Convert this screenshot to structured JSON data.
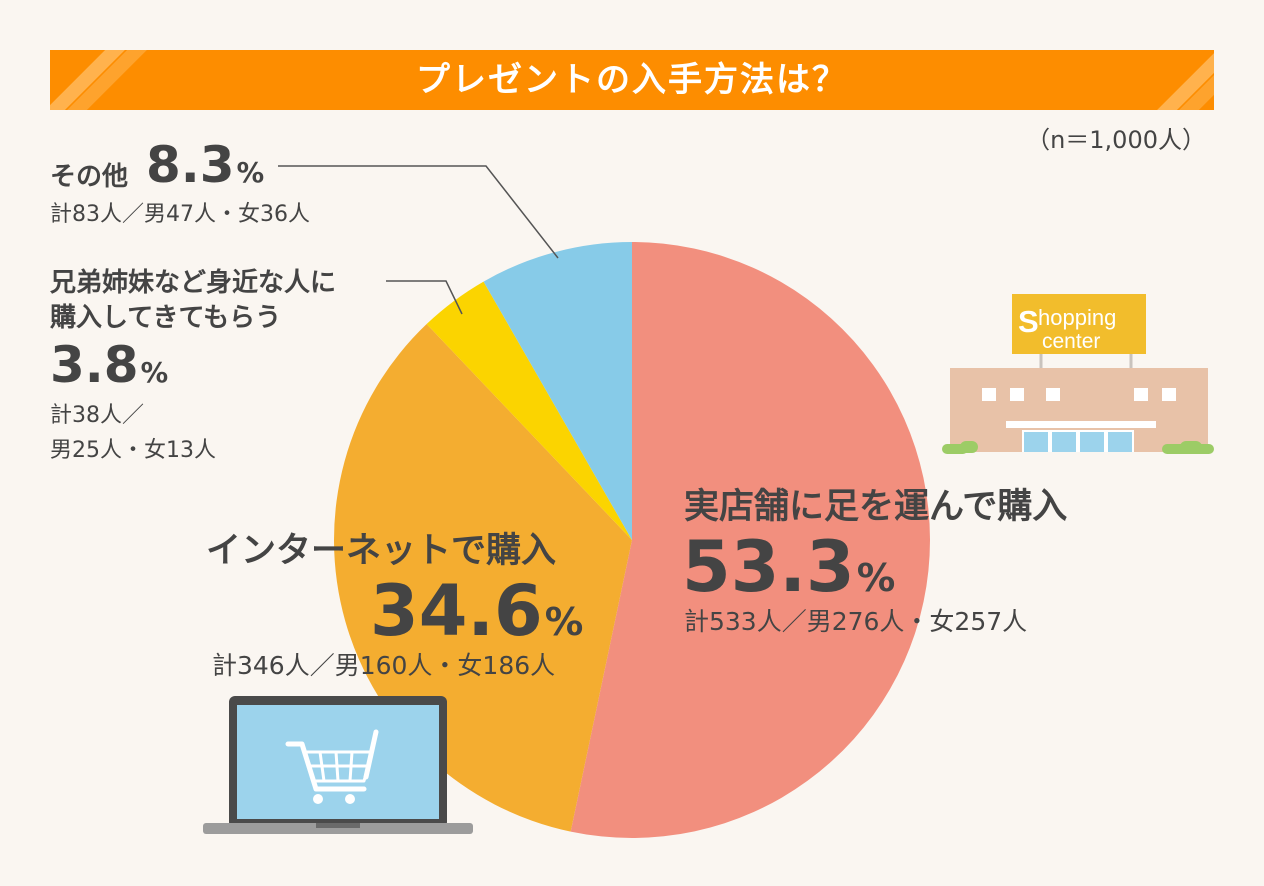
{
  "title": "プレゼントの入手方法は？",
  "sample_note": "（n＝1,000人）",
  "colors": {
    "banner": "#fd8d00",
    "store": "#f28f7e",
    "internet": "#f4ad30",
    "sibling": "#fbd400",
    "other": "#87cbe8",
    "background": "#faf6f1"
  },
  "labels": {
    "store": {
      "name": "実店舗に足を運んで購入",
      "pct": "53.3",
      "unit": "%",
      "detail": "計533人／男276人・女257人"
    },
    "internet": {
      "name": "インターネットで購入",
      "pct": "34.6",
      "unit": "%",
      "detail": "計346人／男160人・女186人"
    },
    "sibling": {
      "name_line1": "兄弟姉妹など身近な人に",
      "name_line2": "購入してきてもらう",
      "pct": "3.8",
      "unit": "%",
      "detail_line1": "計38人／",
      "detail_line2": "男25人・女13人"
    },
    "other": {
      "name": "その他",
      "pct": "8.3",
      "unit": "%",
      "detail": "計83人／男47人・女36人"
    }
  },
  "illustrations": {
    "shop_sign_s": "S",
    "shop_sign_rest": "hopping",
    "shop_sign_line2": "center"
  },
  "chart_data": {
    "type": "pie",
    "title": "プレゼントの入手方法は？",
    "n": 1000,
    "start": "12 o'clock",
    "direction": "clockwise",
    "series": [
      {
        "name": "実店舗に足を運んで購入",
        "value": 53.3,
        "count": 533,
        "male": 276,
        "female": 257,
        "color": "#f28f7e"
      },
      {
        "name": "インターネットで購入",
        "value": 34.6,
        "count": 346,
        "male": 160,
        "female": 186,
        "color": "#f4ad30"
      },
      {
        "name": "兄弟姉妹など身近な人に購入してきてもらう",
        "value": 3.8,
        "count": 38,
        "male": 25,
        "female": 13,
        "color": "#fbd400"
      },
      {
        "name": "その他",
        "value": 8.3,
        "count": 83,
        "male": 47,
        "female": 36,
        "color": "#87cbe8"
      }
    ]
  }
}
